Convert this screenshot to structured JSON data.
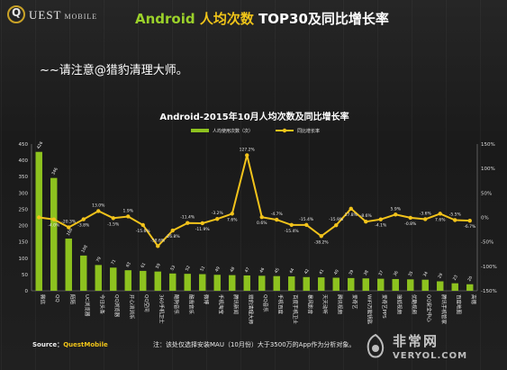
{
  "logo": {
    "ring_letter": "Q",
    "text": "UEST",
    "sub": "MOBILE"
  },
  "page_title": {
    "part1": "Android ",
    "part2": "人均次数 ",
    "part3": "TOP30及同比增长率"
  },
  "note": "~~请注意@猎豹清理大师。",
  "source": {
    "label": "Source：",
    "brand": "QuestMobile"
  },
  "footnote": "注：该处仅选择安装MAU（10月份）大于3500万的App作为分析对象。",
  "watermark": {
    "name": "非常网",
    "url": "VERYOL.COM"
  },
  "colors": {
    "bar": "#8dc21f",
    "line": "#f2c31b",
    "accent_red": "#e03a2f"
  },
  "chart_data": {
    "type": "bar",
    "title": "Android-2015年10月人均次数及同比增长率",
    "legend_position": "top",
    "categories": [
      "微信",
      "QQ",
      "陌陌",
      "UC浏览器",
      "今日头条",
      "QQ浏览器",
      "开心消消乐",
      "QQ空间",
      "360手机卫士",
      "酷狗音乐",
      "酷我音乐",
      "微博",
      "手机淘宝",
      "腾讯新闻",
      "猎豹清理大师",
      "QQ音乐",
      "手机百度",
      "百度手机卫士",
      "暴风影音",
      "天天动听",
      "腾讯视频",
      "爱奇艺",
      "WiFi万能钥匙",
      "爱奇艺PPS",
      "搜狐视频",
      "优酷视频",
      "QQ安全中心",
      "腾讯手机管家",
      "百度地图",
      "高德"
    ],
    "series": [
      {
        "name": "人均使用次数（次）",
        "kind": "bar",
        "axis": "left",
        "values": [
          426,
          346,
          160,
          108,
          79,
          71,
          63,
          61,
          59,
          53,
          52,
          51,
          49,
          48,
          47,
          46,
          45,
          44,
          42,
          41,
          40,
          39,
          38,
          37,
          36,
          35,
          34,
          29,
          23,
          20
        ]
      },
      {
        "name": "同比增长率",
        "kind": "line",
        "axis": "right",
        "values": [
          0.0,
          -4.0,
          -20.3,
          -3.8,
          13.0,
          -1.5,
          1.9,
          -15.6,
          -58.6,
          -26.8,
          -11.4,
          -11.9,
          -3.2,
          7.6,
          127.2,
          0.6,
          -4.7,
          -15.4,
          -15.4,
          -38.2,
          -15.9,
          17.8,
          -8.6,
          -4.1,
          5.9,
          -0.8,
          -3.6,
          7.6,
          -5.5,
          -6.7
        ]
      }
    ],
    "bar_labels": [
      "426",
      "346",
      "160",
      "108",
      "79",
      "71",
      "63",
      "61",
      "59",
      "53",
      "52",
      "51",
      "49",
      "48",
      "47",
      "46",
      "45",
      "44",
      "42",
      "41",
      "40",
      "39",
      "38",
      "37",
      "36",
      "35",
      "34",
      "29",
      "23",
      "20"
    ],
    "line_labels": [
      "",
      "-4.0%",
      "-20.3%",
      "-3.8%",
      "13.0%",
      "-1.5%",
      "1.9%",
      "-15.6%",
      "-58.6%",
      "-26.8%",
      "-11.4%",
      "-11.9%",
      "-3.2%",
      "7.6%",
      "127.2%",
      "0.6%",
      "-4.7%",
      "-15.4%",
      "-15.4%",
      "-38.2%",
      "-15.9%",
      "17.8%",
      "-8.6%",
      "-4.1%",
      "5.9%",
      "-0.8%",
      "-3.6%",
      "7.6%",
      "-5.5%",
      "-6.7%"
    ],
    "y_left": {
      "min": 0,
      "max": 450,
      "ticks": [
        0,
        50,
        100,
        150,
        200,
        250,
        300,
        350,
        400,
        450
      ]
    },
    "y_right": {
      "min": -150,
      "max": 150,
      "ticks": [
        -150,
        -100,
        -50,
        0,
        50,
        100,
        150
      ],
      "unit": "%"
    }
  }
}
